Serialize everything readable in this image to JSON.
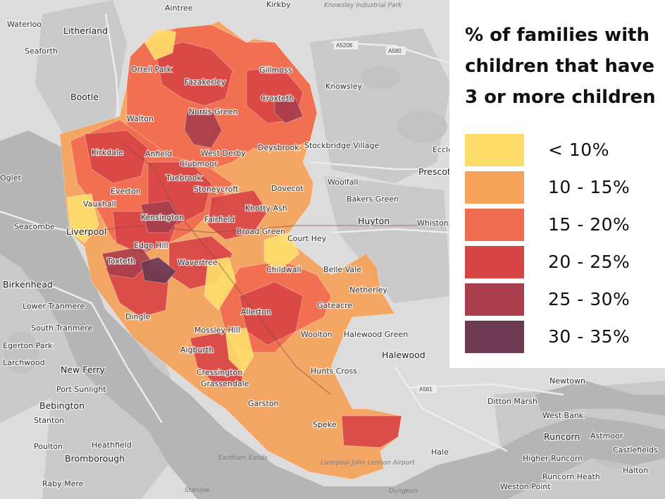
{
  "legend": {
    "title_lines": [
      "% of families with",
      "children that have",
      "3 or more children"
    ],
    "items": [
      {
        "label": "< 10%",
        "color": "#fddc6a"
      },
      {
        "label": "10 - 15%",
        "color": "#f5a25a"
      },
      {
        "label": "15 - 20%",
        "color": "#ef6b4f"
      },
      {
        "label": "20 - 25%",
        "color": "#d84545"
      },
      {
        "label": "25 - 30%",
        "color": "#a93f4d"
      },
      {
        "label": "30 - 35%",
        "color": "#6e3a52"
      }
    ]
  },
  "places": {
    "aintree": "Aintree",
    "kirkby": "Kirkby",
    "knowsley_park": "Knowsley Industrial Park",
    "waterloo": "Waterloo",
    "litherland": "Litherland",
    "seaforth": "Seaforth",
    "bootle": "Bootle",
    "orrell_park": "Orrell Park",
    "fazakerley": "Fazakerley",
    "gillmoss": "Gillmoss",
    "croxteth": "Croxteth",
    "knowsley": "Knowsley",
    "norris_green": "Norris Green",
    "walton": "Walton",
    "kirkdale": "Kirkdale",
    "anfield": "Anfield",
    "west_derby": "West Derby",
    "deysbrook": "Deysbrook",
    "stockbridge_village": "Stockbridge Village",
    "clubmoor": "Clubmoor",
    "tuebrook": "Tuebrook",
    "everton": "Everton",
    "stoneycroft": "Stoneycroft",
    "dovecot": "Dovecot",
    "woolfall": "Woolfall",
    "bakers_green": "Bakers Green",
    "prescot": "Prescot",
    "eccleston": "Eccle",
    "vauxhall": "Vauxhall",
    "kensington": "Kensington",
    "knotty_ash": "Knotty Ash",
    "fairfield": "Fairfield",
    "broad_green": "Broad Green",
    "huyton": "Huyton",
    "whiston": "Whiston La Ends",
    "seacombe": "Seacombe",
    "liverpool": "Liverpool",
    "edge_hill": "Edge Hill",
    "court_hey": "Court Hey",
    "birkenhead": "Birkenhead",
    "toxteth": "Toxteth",
    "wavertree": "Wavertree",
    "childwall": "Childwall",
    "belle_vale": "Belle Vale",
    "netherley": "Netherley",
    "lower_tranmere": "Lower Tranmere",
    "allerton": "Allerton",
    "gateacre": "Gateacre",
    "south_tranmere": "South Tranmere",
    "dingle": "Dingle",
    "mossley_hill": "Mossley Hill",
    "woolton": "Woolton",
    "halewood_green": "Halewood Green",
    "egerton_park": "Egerton Park",
    "aigburth": "Aigburth",
    "halewood": "Halewood",
    "larchwood": "Larchwood",
    "new_ferry": "New Ferry",
    "hunts_cross": "Hunts Cross",
    "cressington": "Cressington",
    "grassendale": "Grassendale",
    "port_sunlight": "Port Sunlight",
    "newtown": "Newtown",
    "bebington": "Bebington",
    "ditton_marsh": "Ditton Marsh",
    "garston": "Garston",
    "stanton": "Stanton",
    "west_bank": "West Bank",
    "speke": "Speke",
    "runcorn": "Runcorn",
    "astmoor": "Astmoor",
    "castlefields": "Castlefields",
    "poulton": "Poulton",
    "heathfield": "Heathfield",
    "hale": "Hale",
    "higher_runcorn": "Higher Runcorn",
    "bromborough": "Bromborough",
    "runcorn_heath": "Runcorn Heath",
    "halton": "Halton",
    "eastham_sands": "Eastham Sands",
    "airport": "Liverpool John Lennon Airport",
    "raby_mere": "Raby Mere",
    "weston_point": "Weston Point",
    "oglet": "Oglet",
    "shorrocks": "Stanlow",
    "dungeon": "Dungeon"
  },
  "roads": {
    "a5208": "A5208",
    "a580": "A580",
    "a561": "A561"
  }
}
